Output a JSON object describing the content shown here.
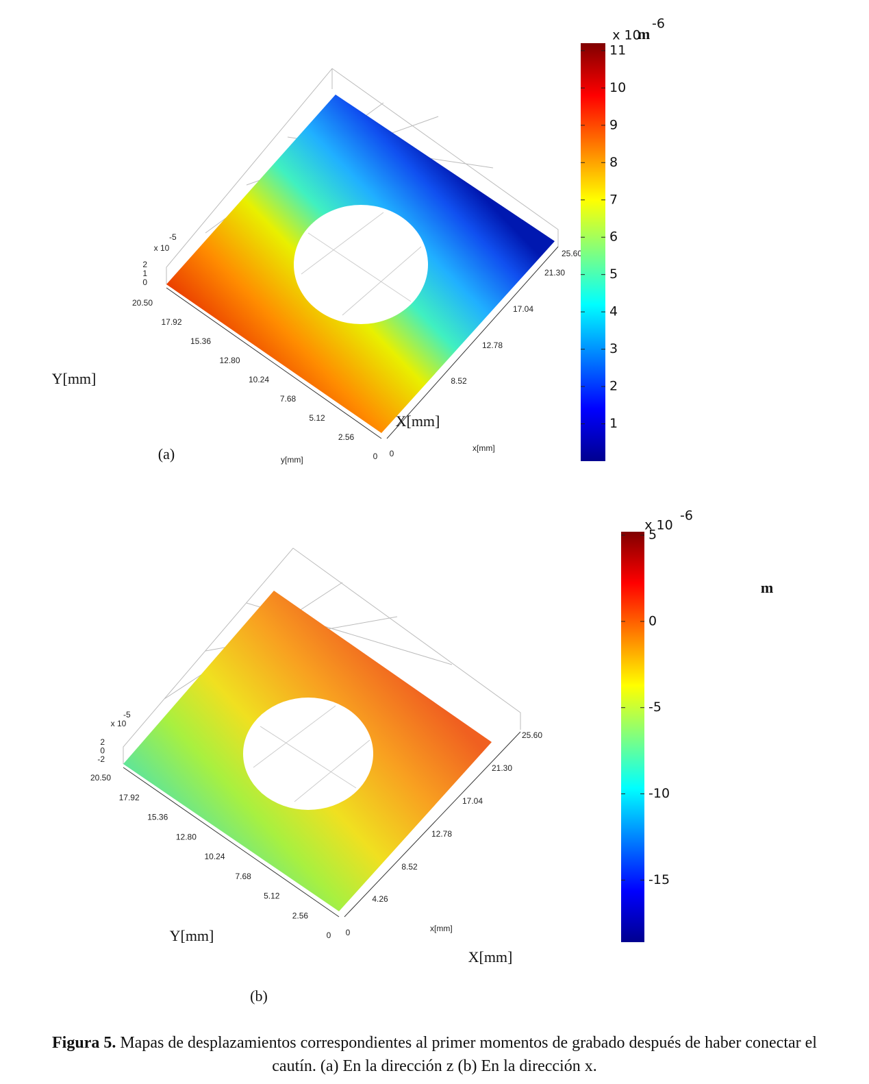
{
  "panels": [
    {
      "label": "(a)",
      "x_axis_label": "X[mm]",
      "y_axis_label": "Y[mm]",
      "x_axis_small_label": "x[mm]",
      "y_axis_small_label": "y[mm]",
      "x_ticks": [
        "0",
        "8.52",
        "12.78",
        "17.04",
        "21.30",
        "25.60"
      ],
      "y_ticks": [
        "20.50",
        "17.92",
        "15.36",
        "12.80",
        "10.24",
        "7.68",
        "5.12",
        "2.56",
        "0"
      ],
      "z_scale_label": "x 10",
      "z_scale_exponent": "-5",
      "z_ticks": [
        "2",
        "1",
        "0"
      ],
      "colorbar": {
        "multiplier": "x 10",
        "exponent": "-6",
        "unit": "m",
        "clim": [
          0,
          11.2
        ],
        "ticks": [
          1,
          2,
          3,
          4,
          5,
          6,
          7,
          8,
          9,
          10,
          11
        ]
      }
    },
    {
      "label": "(b)",
      "x_axis_label": "X[mm]",
      "y_axis_label": "Y[mm]",
      "x_axis_small_label": "x[mm]",
      "x_ticks": [
        "0",
        "4.26",
        "8.52",
        "12.78",
        "17.04",
        "21.30",
        "25.60"
      ],
      "y_ticks": [
        "20.50",
        "17.92",
        "15.36",
        "12.80",
        "10.24",
        "7.68",
        "5.12",
        "2.56",
        "0"
      ],
      "z_scale_label": "x 10",
      "z_scale_exponent": "-5",
      "z_ticks": [
        "2",
        "0",
        "-2"
      ],
      "colorbar": {
        "multiplier": "x 10",
        "exponent": "-6",
        "unit": "m",
        "clim": [
          -18.6,
          5.2
        ],
        "ticks": [
          5,
          0,
          -5,
          -10,
          -15
        ]
      }
    }
  ],
  "caption": {
    "label": "Figura 5.",
    "line1": "Mapas de desplazamientos correspondientes al primer momentos de grabado después de haber conectar el",
    "line2": "cautín. (a) En la dirección z (b) En la dirección x."
  }
}
